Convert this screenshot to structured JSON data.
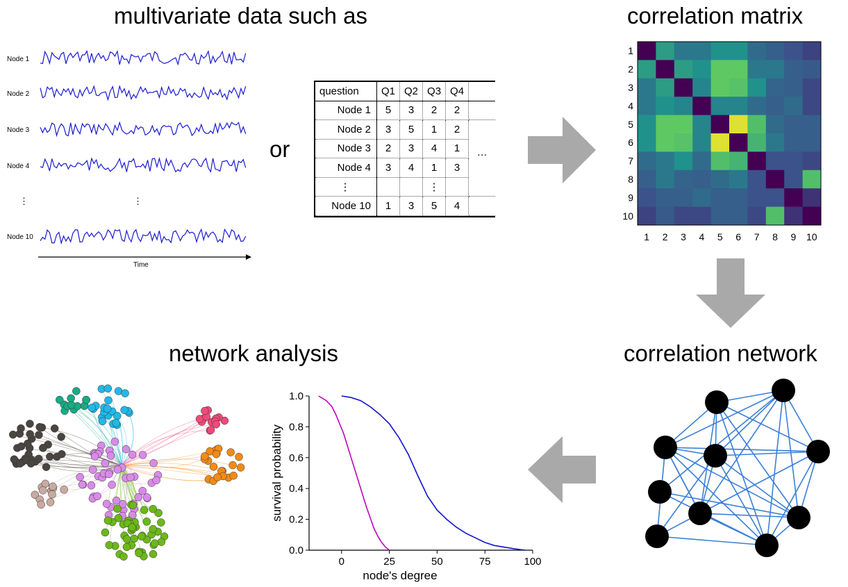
{
  "headings": {
    "multivariate": "multivariate data such as",
    "corr_matrix": "correlation matrix",
    "network_analysis": "network analysis",
    "corr_network": "correlation network"
  },
  "or_text": "or",
  "timeseries": {
    "labels": [
      "Node 1",
      "Node 2",
      "Node 3",
      "Node 4",
      "Node 10"
    ],
    "vdots": "⋮",
    "axis_label": "Time",
    "line_color": "#1a1ad0"
  },
  "table": {
    "header": [
      "question",
      "Q1",
      "Q2",
      "Q3",
      "Q4",
      ""
    ],
    "rows": [
      [
        "Node 1",
        "5",
        "3",
        "2",
        "2",
        ""
      ],
      [
        "Node 2",
        "3",
        "5",
        "1",
        "2",
        ""
      ],
      [
        "Node 3",
        "2",
        "3",
        "4",
        "1",
        "…"
      ],
      [
        "Node 4",
        "3",
        "4",
        "1",
        "3",
        ""
      ],
      [
        "⋮",
        "",
        "",
        "⋮",
        "",
        ""
      ],
      [
        "Node 10",
        "1",
        "3",
        "5",
        "4",
        ""
      ]
    ]
  },
  "matrix": {
    "tick_labels": [
      "1",
      "2",
      "3",
      "4",
      "5",
      "6",
      "7",
      "8",
      "9",
      "10"
    ],
    "values": [
      [
        1.0,
        0.55,
        0.4,
        0.4,
        0.5,
        0.5,
        0.35,
        0.3,
        0.25,
        0.2
      ],
      [
        0.55,
        1.0,
        0.55,
        0.5,
        0.75,
        0.75,
        0.4,
        0.4,
        0.3,
        0.28
      ],
      [
        0.4,
        0.55,
        1.0,
        0.45,
        0.75,
        0.72,
        0.5,
        0.32,
        0.3,
        0.22
      ],
      [
        0.4,
        0.5,
        0.45,
        1.0,
        0.45,
        0.45,
        0.35,
        0.3,
        0.35,
        0.22
      ],
      [
        0.5,
        0.75,
        0.75,
        0.45,
        1.0,
        0.95,
        0.7,
        0.35,
        0.3,
        0.3
      ],
      [
        0.5,
        0.75,
        0.72,
        0.45,
        0.95,
        1.0,
        0.65,
        0.4,
        0.3,
        0.3
      ],
      [
        0.35,
        0.4,
        0.5,
        0.35,
        0.7,
        0.65,
        1.0,
        0.25,
        0.25,
        0.22
      ],
      [
        0.3,
        0.4,
        0.32,
        0.3,
        0.35,
        0.4,
        0.25,
        1.0,
        0.25,
        0.7
      ],
      [
        0.25,
        0.3,
        0.3,
        0.35,
        0.3,
        0.3,
        0.25,
        0.25,
        1.0,
        0.15
      ],
      [
        0.2,
        0.28,
        0.22,
        0.22,
        0.3,
        0.3,
        0.22,
        0.7,
        0.15,
        1.0
      ]
    ],
    "diag_color": "#440154"
  },
  "chart_data": {
    "type": "line",
    "xlabel": "node's degree",
    "ylabel": "survival probability",
    "xlim": [
      -17,
      100
    ],
    "ylim": [
      0,
      1.0
    ],
    "xticks": [
      "0",
      "25",
      "50",
      "75",
      "100"
    ],
    "xtick_values": [
      0,
      25,
      50,
      75,
      100
    ],
    "yticks": [
      "0.0",
      "0.2",
      "0.4",
      "0.6",
      "0.8",
      "1.0"
    ],
    "ytick_values": [
      0,
      0.2,
      0.4,
      0.6,
      0.8,
      1.0
    ],
    "series": [
      {
        "color": "#c000c0",
        "x": [
          -12,
          -8,
          -5,
          -3,
          -1,
          1,
          3,
          5,
          7,
          9,
          11,
          13,
          15,
          17,
          19,
          21,
          23,
          25
        ],
        "y": [
          1.0,
          0.97,
          0.93,
          0.88,
          0.82,
          0.76,
          0.68,
          0.6,
          0.52,
          0.44,
          0.36,
          0.28,
          0.21,
          0.14,
          0.09,
          0.05,
          0.02,
          0.0
        ]
      },
      {
        "color": "#1010d0",
        "x": [
          0,
          5,
          10,
          15,
          20,
          25,
          30,
          35,
          40,
          45,
          50,
          55,
          60,
          65,
          70,
          75,
          80,
          85,
          90,
          96
        ],
        "y": [
          1.0,
          0.99,
          0.97,
          0.93,
          0.88,
          0.82,
          0.73,
          0.62,
          0.48,
          0.35,
          0.26,
          0.2,
          0.15,
          0.11,
          0.08,
          0.05,
          0.03,
          0.02,
          0.01,
          0.0
        ]
      }
    ]
  },
  "colors": {
    "arrow": "#a9a9a9",
    "edge": "#3a7fd8",
    "cluster_brown": "#4a4540",
    "cluster_teal": "#1aaa85",
    "cluster_cyan": "#20b8e8",
    "cluster_pink": "#f04a7a",
    "cluster_orange": "#f28a18",
    "cluster_violet": "#d98ae8",
    "cluster_green": "#6cb81a",
    "cluster_tan": "#c8aaa0"
  }
}
